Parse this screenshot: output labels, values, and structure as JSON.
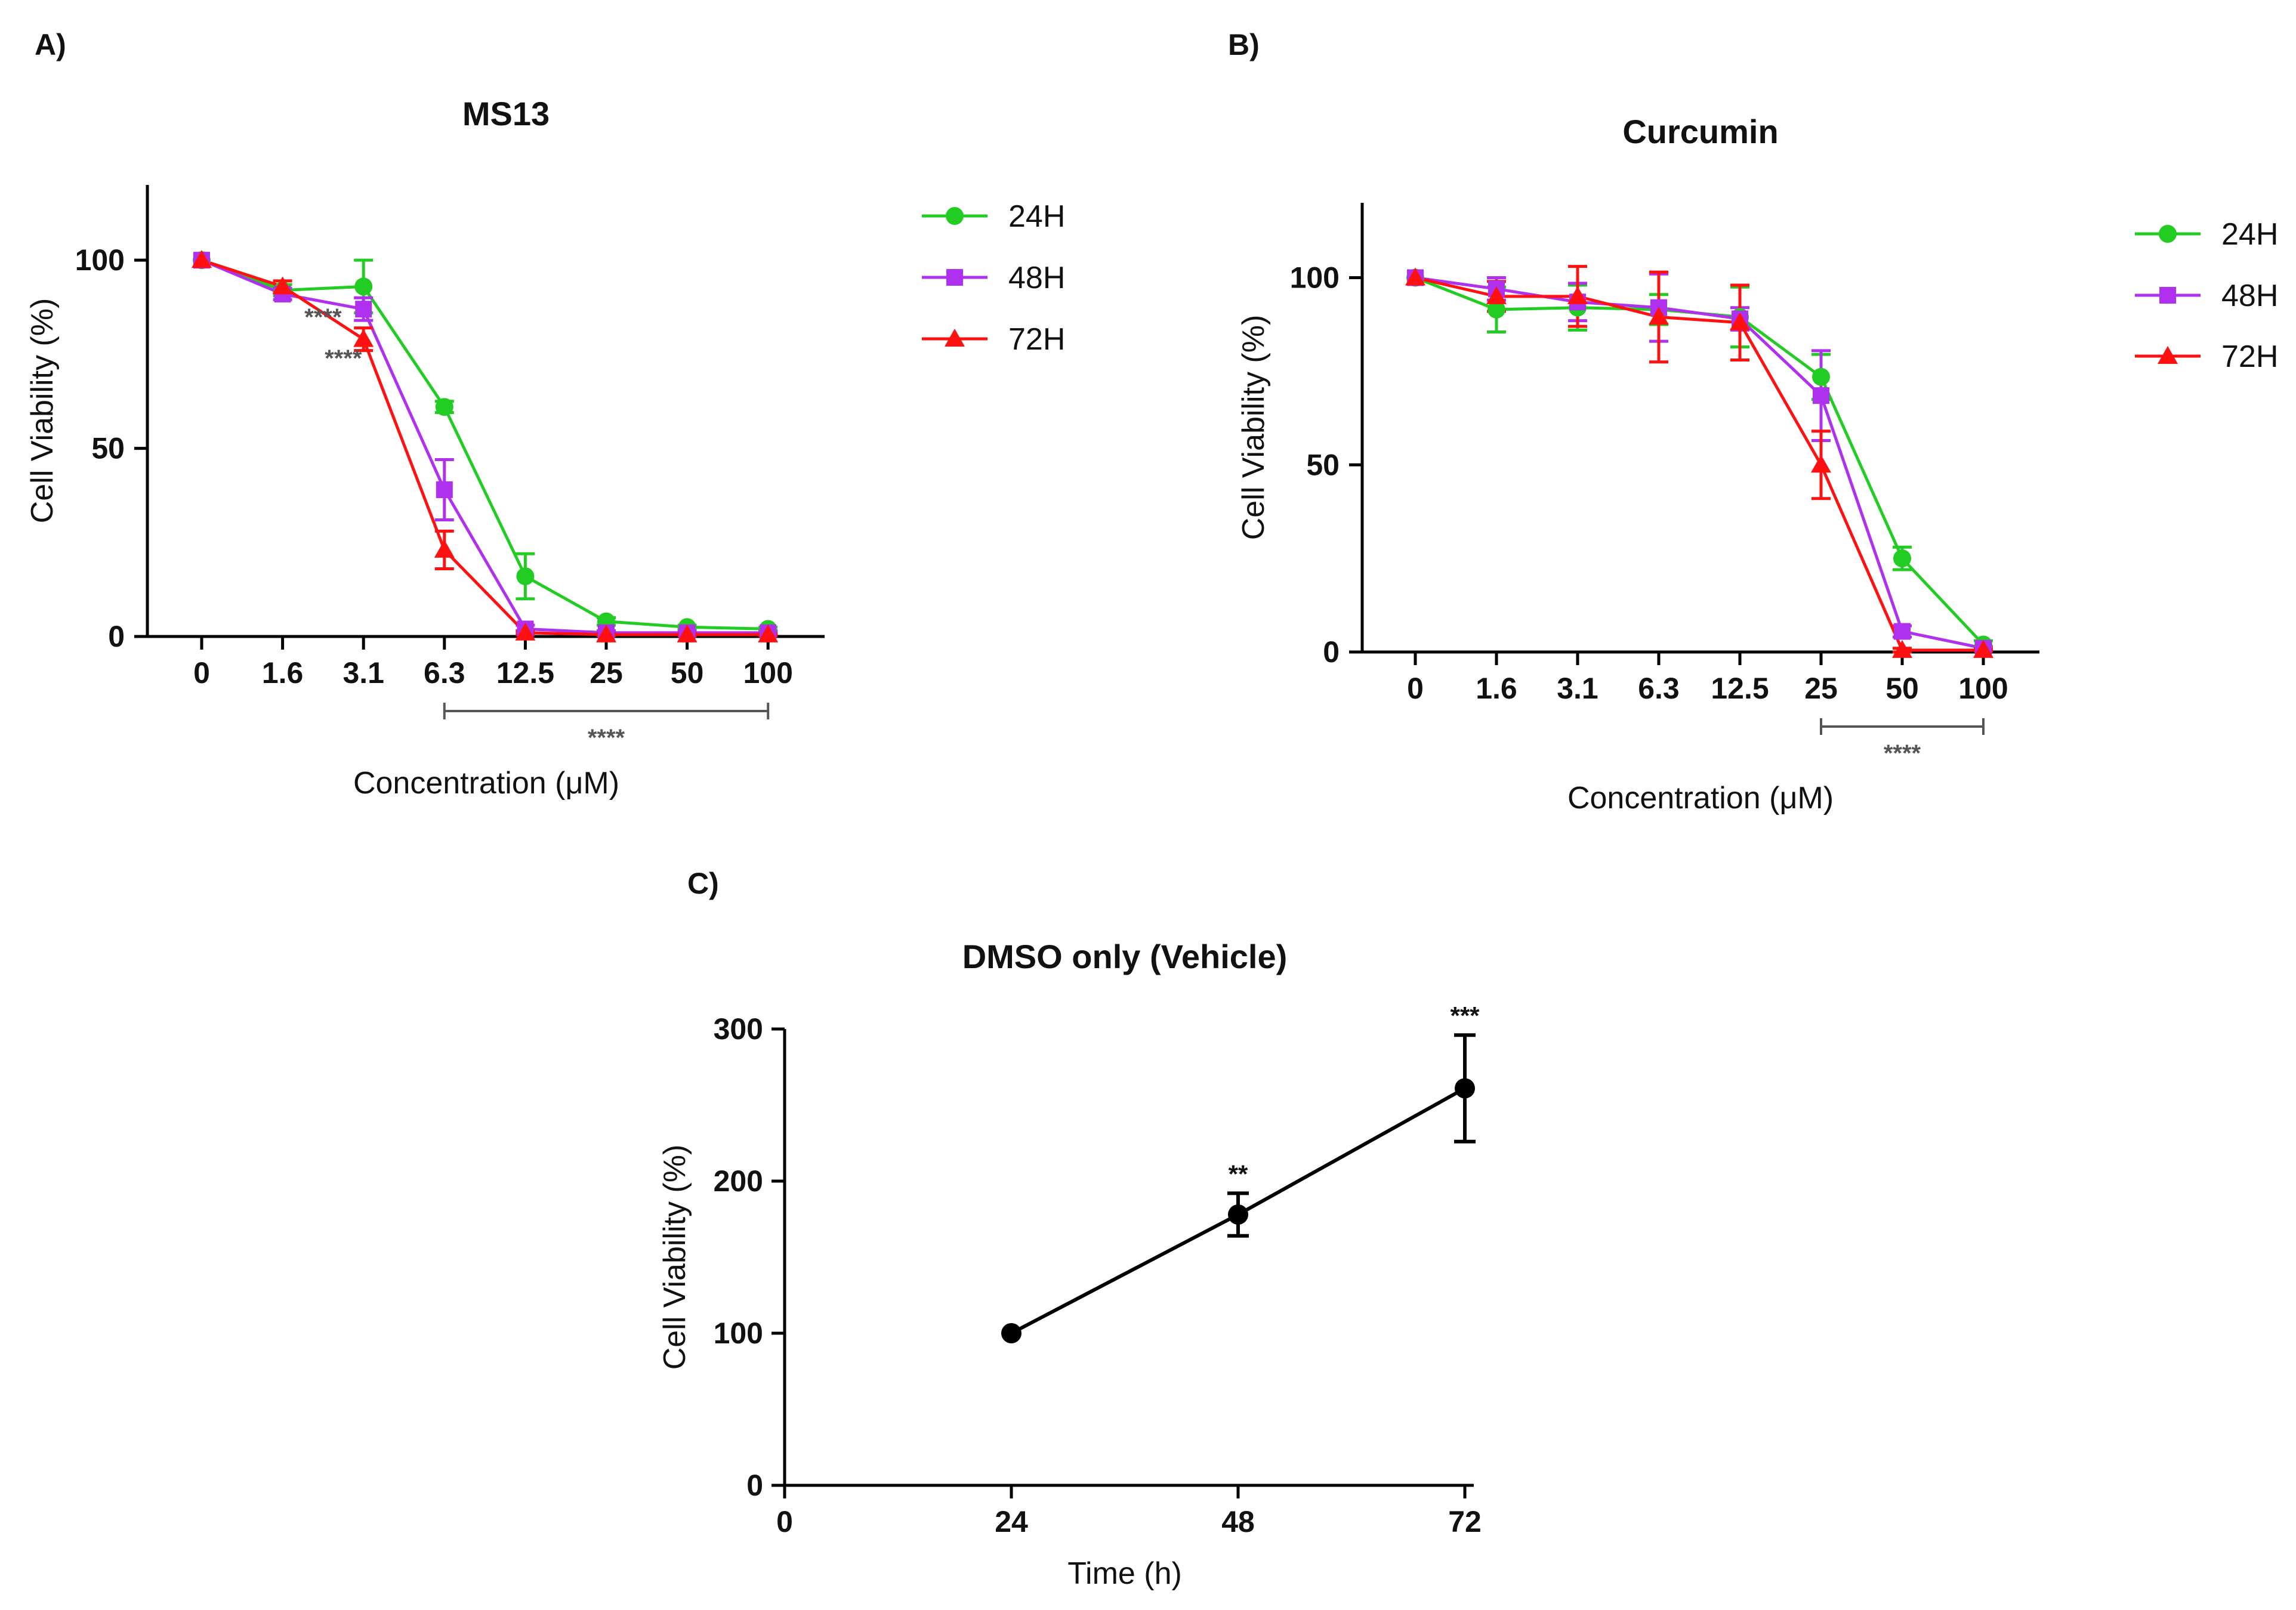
{
  "panels": {
    "A": "A)",
    "B": "B)",
    "C": "C)"
  },
  "colors": {
    "24H": "#22cc22",
    "48H": "#b030f0",
    "72H": "#ff1111",
    "vehicle": "#000000",
    "axis": "#000000",
    "bracket": "#555555"
  },
  "chart_data": [
    {
      "id": "A",
      "type": "line",
      "title": "MS13",
      "xlabel": "Concentration (μM)",
      "ylabel": "Cell Viability (%)",
      "categories": [
        "0",
        "1.6",
        "3.1",
        "6.3",
        "12.5",
        "25",
        "50",
        "100"
      ],
      "ylim": [
        0,
        120
      ],
      "yticks": [
        0,
        50,
        100
      ],
      "legend_position": "right",
      "series": [
        {
          "name": "24H",
          "marker": "circle",
          "values": [
            100,
            92,
            93,
            61,
            16,
            4,
            2.5,
            2
          ],
          "errors": [
            0,
            1.5,
            7,
            1.5,
            6,
            1,
            0.5,
            0.5
          ]
        },
        {
          "name": "48H",
          "marker": "square",
          "values": [
            100,
            91,
            87,
            39,
            2,
            1,
            1,
            1
          ],
          "errors": [
            0,
            1.5,
            3,
            8,
            1,
            0.5,
            0.5,
            0.5
          ]
        },
        {
          "name": "72H",
          "marker": "triangle",
          "values": [
            100,
            93,
            79,
            23,
            1,
            0.5,
            0.5,
            0.5
          ],
          "errors": [
            0,
            1.5,
            3,
            5,
            0.5,
            0.3,
            0.3,
            0.3
          ]
        }
      ],
      "annotations": [
        {
          "text": "****",
          "x_index": 1.5,
          "y": 85
        },
        {
          "text": "****",
          "x_index": 1.75,
          "y": 74
        }
      ],
      "bracket": {
        "from_index": 3,
        "to_index": 7,
        "text": "****"
      }
    },
    {
      "id": "B",
      "type": "line",
      "title": "Curcumin",
      "xlabel": "Concentration (μM)",
      "ylabel": "Cell Viability (%)",
      "categories": [
        "0",
        "1.6",
        "3.1",
        "6.3",
        "12.5",
        "25",
        "50",
        "100"
      ],
      "ylim": [
        0,
        120
      ],
      "yticks": [
        0,
        50,
        100
      ],
      "legend_position": "right",
      "series": [
        {
          "name": "24H",
          "marker": "circle",
          "values": [
            100,
            91.5,
            92,
            91.5,
            89.5,
            73.5,
            25,
            2
          ],
          "errors": [
            0,
            6,
            6,
            4,
            8,
            6,
            3,
            1
          ]
        },
        {
          "name": "48H",
          "marker": "square",
          "values": [
            100,
            97,
            93.5,
            92,
            89,
            68.5,
            5.5,
            1
          ],
          "errors": [
            0,
            3,
            5,
            9,
            3,
            12,
            1.5,
            0.5
          ]
        },
        {
          "name": "72H",
          "marker": "triangle",
          "values": [
            100,
            95,
            95,
            89.5,
            88,
            50,
            0.5,
            0.5
          ],
          "errors": [
            0,
            4,
            8,
            12,
            10,
            9,
            0.5,
            0.3
          ]
        }
      ],
      "annotations": [],
      "bracket": {
        "from_index": 5,
        "to_index": 7,
        "text": "****"
      }
    },
    {
      "id": "C",
      "type": "line",
      "title": "DMSO only (Vehicle)",
      "xlabel": "Time (h)",
      "ylabel": "Cell Viability (%)",
      "x": [
        24,
        48,
        72
      ],
      "xticks": [
        0,
        24,
        48,
        72
      ],
      "xlim": [
        0,
        72
      ],
      "ylim": [
        0,
        300
      ],
      "yticks": [
        0,
        100,
        200,
        300
      ],
      "series": [
        {
          "name": "DMSO only (Vehicle)",
          "marker": "circle",
          "values": [
            100,
            178,
            261
          ],
          "errors": [
            0,
            14,
            35
          ]
        }
      ],
      "point_labels": [
        "",
        "**",
        "***"
      ]
    }
  ]
}
